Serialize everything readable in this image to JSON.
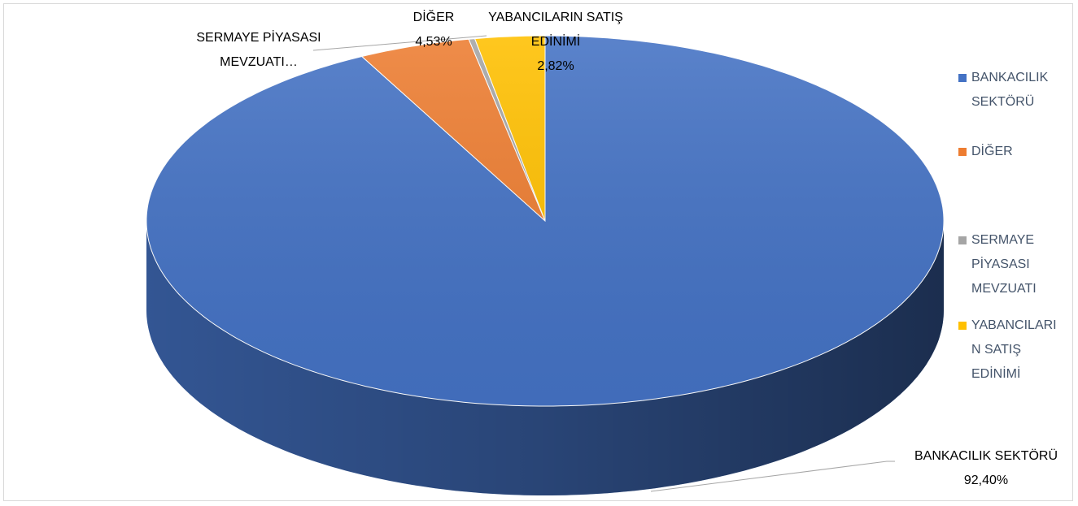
{
  "chart_data": {
    "type": "pie",
    "categories": [
      "BANKACILIK SEKTÖRÜ",
      "DİĞER",
      "SERMAYE PİYASASI MEVZUATI",
      "YABANCILARIN SATIŞ EDİNİMİ"
    ],
    "values": [
      92.4,
      4.53,
      0.25,
      2.82
    ],
    "value_labels": [
      "92,40%",
      "4,53%",
      null,
      "2,82%"
    ],
    "data_labels": [
      "BANKACILIK SEKTÖRÜ",
      "DİĞER",
      "SERMAYE PİYASASI MEVZUATI…",
      "YABANCILARIN SATIŞ EDİNİMİ"
    ],
    "colors": [
      "#4472c4",
      "#ed7d31",
      "#a5a5a5",
      "#ffc000"
    ],
    "legend": "right"
  }
}
